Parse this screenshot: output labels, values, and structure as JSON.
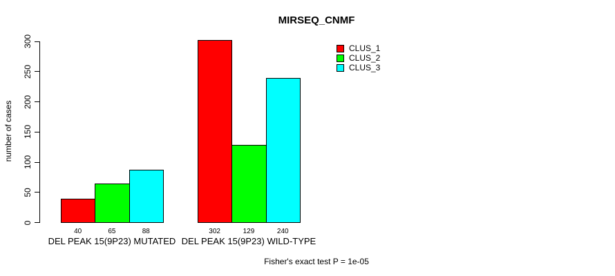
{
  "chart_data": {
    "type": "bar",
    "title": "MIRSEQ_CNMF",
    "xlabel": "",
    "ylabel": "number of cases",
    "ylim": [
      0,
      300
    ],
    "yticks": [
      0,
      50,
      100,
      150,
      200,
      250,
      300
    ],
    "grid": false,
    "legend_position": "top-right",
    "categories": [
      "DEL PEAK 15(9P23) MUTATED",
      "DEL PEAK 15(9P23) WILD-TYPE"
    ],
    "series": [
      {
        "name": "CLUS_1",
        "color": "#ff0000",
        "values": [
          40,
          302
        ]
      },
      {
        "name": "CLUS_2",
        "color": "#00ff00",
        "values": [
          65,
          129
        ]
      },
      {
        "name": "CLUS_3",
        "color": "#00ffff",
        "values": [
          88,
          240
        ]
      }
    ],
    "bar_value_labels_shown": true,
    "annotation": "Fisher's exact test P = 1e-05",
    "colors": {
      "axis": "#000000",
      "text": "#000000",
      "background": "#ffffff"
    }
  }
}
